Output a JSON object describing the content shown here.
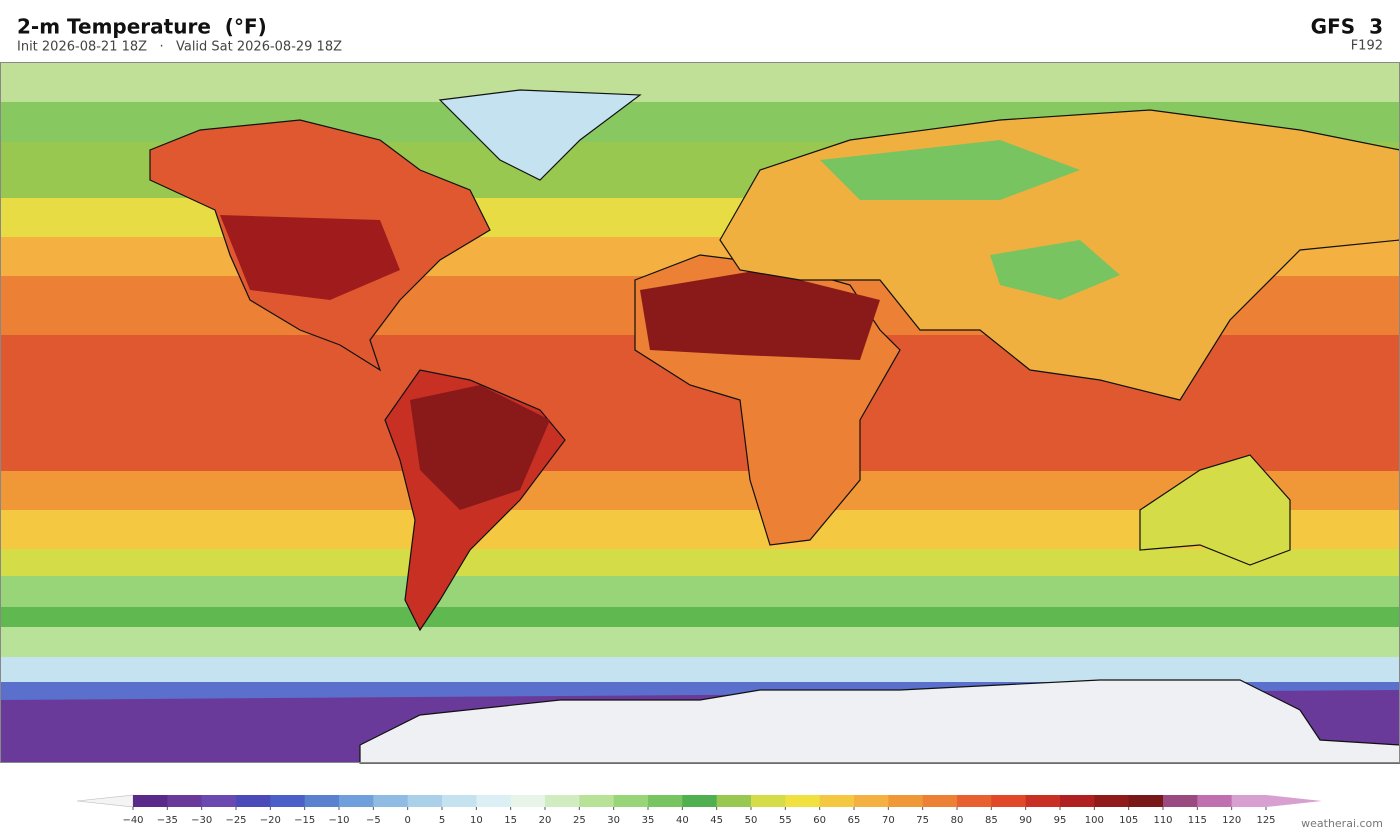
{
  "header": {
    "title": "2-m Temperature  (°F)",
    "subtitle": "Init 2026-08-21 18Z   ·   Valid Sat 2026-08-29 18Z",
    "model": "GFS  3",
    "forecast_hour": "F192"
  },
  "colorbar": {
    "ticks": [
      {
        "value": -40,
        "label": "−40"
      },
      {
        "value": -35,
        "label": "−35"
      },
      {
        "value": -30,
        "label": "−30"
      },
      {
        "value": -25,
        "label": "−25"
      },
      {
        "value": -20,
        "label": "−20"
      },
      {
        "value": -15,
        "label": "−15"
      },
      {
        "value": -10,
        "label": "−10"
      },
      {
        "value": -5,
        "label": "−5"
      },
      0,
      5,
      10,
      15,
      20,
      25,
      30,
      35,
      40,
      45,
      50,
      55,
      60,
      65,
      70,
      75,
      80,
      85,
      90,
      95,
      100,
      105,
      110,
      115,
      120,
      125
    ],
    "colors": [
      "#5a2a8a",
      "#6a3a9a",
      "#6a4ab0",
      "#4a4ab8",
      "#4a60c8",
      "#5a80d0",
      "#70a0dc",
      "#90bce4",
      "#aad0ea",
      "#c4e2f0",
      "#dceff4",
      "#e8f4e8",
      "#d0ecc0",
      "#b8e298",
      "#98d478",
      "#78c460",
      "#50b050",
      "#98c850",
      "#d4dc48",
      "#f0e040",
      "#f4c840",
      "#f4b040",
      "#f09838",
      "#ec8034",
      "#e86030",
      "#e04828",
      "#c83024",
      "#b02020",
      "#901a1a",
      "#781818",
      "#9a4a80",
      "#c070b0",
      "#d8a0d0"
    ],
    "under_color": "#f4f4f4",
    "over_color": "#d8a0d0"
  },
  "footer": {
    "credit": "weatherai.com"
  }
}
